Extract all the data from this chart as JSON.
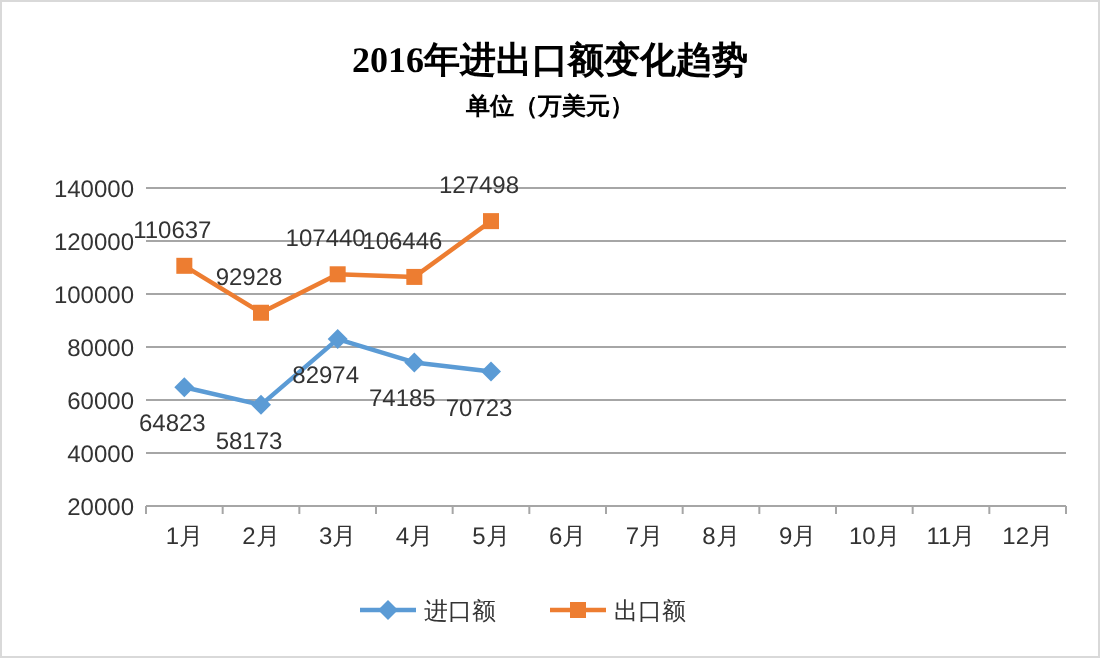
{
  "chart_data": {
    "type": "line",
    "title": "2016年进出口额变化趋势",
    "subtitle": "单位（万美元）",
    "categories": [
      "1月",
      "2月",
      "3月",
      "4月",
      "5月",
      "6月",
      "7月",
      "8月",
      "9月",
      "10月",
      "11月",
      "12月"
    ],
    "series": [
      {
        "name": "进口额",
        "color": "#5b9bd5",
        "marker": "diamond",
        "values": [
          64823,
          58173,
          82974,
          74185,
          70723,
          null,
          null,
          null,
          null,
          null,
          null,
          null
        ]
      },
      {
        "name": "出口额",
        "color": "#ed7d31",
        "marker": "square",
        "values": [
          110637,
          92928,
          107440,
          106446,
          127498,
          null,
          null,
          null,
          null,
          null,
          null,
          null
        ]
      }
    ],
    "ylim": [
      20000,
      140000
    ],
    "yticks": [
      20000,
      40000,
      60000,
      80000,
      100000,
      120000,
      140000
    ],
    "grid": "y",
    "legend": "bottom",
    "data_labels": true,
    "line_style": "solid"
  }
}
